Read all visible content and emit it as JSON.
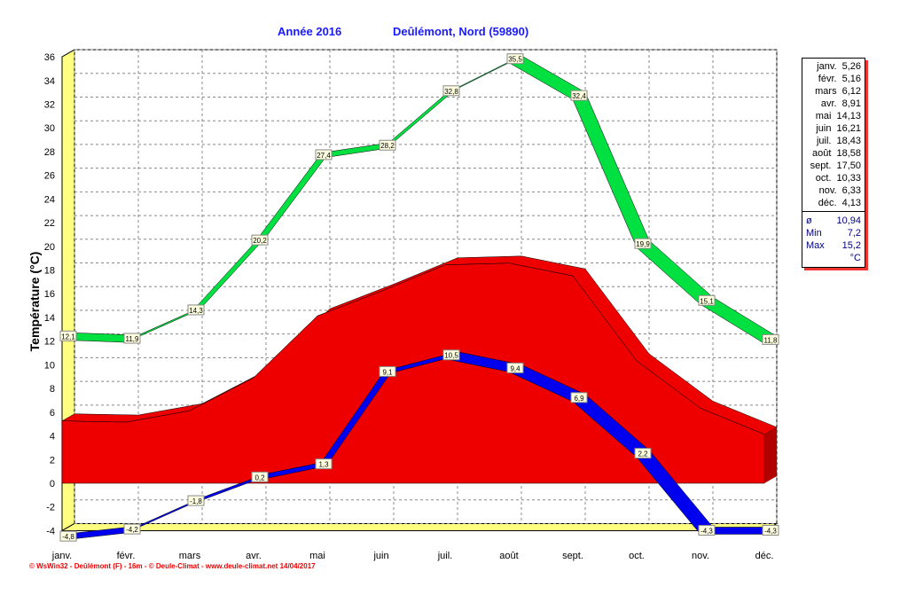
{
  "header": {
    "year": "Année  2016",
    "station": "Deûlémont, Nord (59890)"
  },
  "legend": {
    "months": [
      {
        "m": "janv.",
        "v": "5,26"
      },
      {
        "m": "févr.",
        "v": "5,16"
      },
      {
        "m": "mars",
        "v": "6,12"
      },
      {
        "m": "avr.",
        "v": "8,91"
      },
      {
        "m": "mai",
        "v": "14,13"
      },
      {
        "m": "juin",
        "v": "16,21"
      },
      {
        "m": "juil.",
        "v": "18,43"
      },
      {
        "m": "août",
        "v": "18,58"
      },
      {
        "m": "sept.",
        "v": "17,50"
      },
      {
        "m": "oct.",
        "v": "10,33"
      },
      {
        "m": "nov.",
        "v": "6,33"
      },
      {
        "m": "déc.",
        "v": "4,13"
      }
    ],
    "avg_label": "ø",
    "avg": "10,94",
    "min_label": "Min",
    "min": "7,2",
    "max_label": "Max",
    "max": "15,2",
    "unit": "°C"
  },
  "footer": "© WsWin32 - Deûlémont (F) - 16m - © Deule-Climat - www.deule-climat.net  14/04/2017",
  "colors": {
    "max": "#00e040",
    "mean": "#ee0000",
    "min": "#0000ee",
    "title": "#1a1aff"
  },
  "chart_data": {
    "type": "area",
    "title": "Année 2016 — Deûlémont, Nord (59890)",
    "ylabel": "Température  (°C)",
    "xlabel": "",
    "ylim": [
      -4,
      36
    ],
    "yticks": [
      -4,
      -2,
      0,
      2,
      4,
      6,
      8,
      10,
      12,
      14,
      16,
      18,
      20,
      22,
      24,
      26,
      28,
      30,
      32,
      34,
      36
    ],
    "categories": [
      "janv.",
      "févr.",
      "mars",
      "avr.",
      "mai",
      "juin",
      "juil.",
      "août",
      "sept.",
      "oct.",
      "nov.",
      "déc."
    ],
    "series": [
      {
        "name": "Max",
        "values": [
          12.1,
          11.9,
          14.3,
          20.2,
          27.4,
          28.2,
          32.8,
          35.5,
          32.4,
          19.9,
          15.1,
          11.8
        ]
      },
      {
        "name": "Moyenne",
        "values": [
          5.26,
          5.16,
          6.12,
          8.91,
          14.13,
          16.21,
          18.43,
          18.58,
          17.5,
          10.33,
          6.33,
          4.13
        ]
      },
      {
        "name": "Min",
        "values": [
          -4.8,
          -4.2,
          -1.8,
          0.2,
          1.3,
          9.1,
          10.5,
          9.4,
          6.9,
          2.2,
          -4.3,
          -4.3
        ]
      }
    ],
    "grid": true
  }
}
